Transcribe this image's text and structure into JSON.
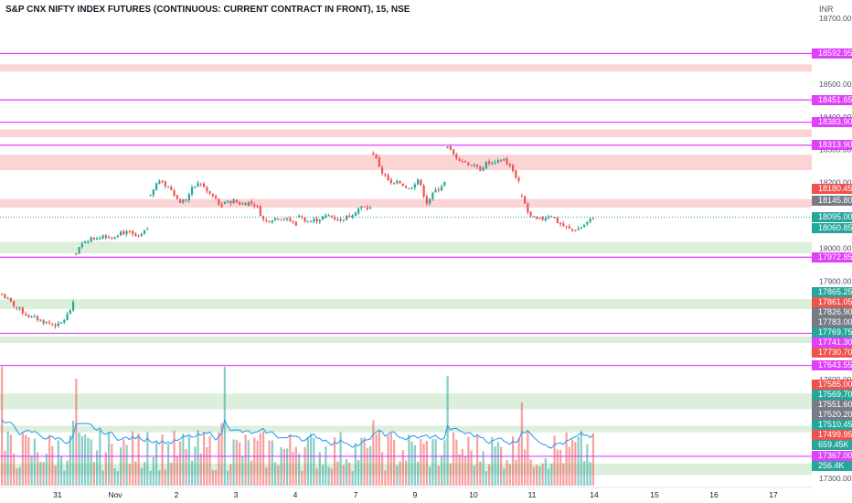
{
  "header": {
    "title": "S&P CNX NIFTY INDEX FUTURES (CONTINUOUS: CURRENT CONTRACT IN FRONT), 15, NSE",
    "currency": "INR"
  },
  "colors": {
    "up": "#26a69a",
    "down": "#ef5350",
    "level_line": "#e040fb",
    "supply_zone": "#fbd5d5",
    "demand_zone": "#dcefdc",
    "last_price_dotted": "#26a69a",
    "volume_ma": "#2196f3",
    "axis_text": "#50535e"
  },
  "chart_data": {
    "type": "candlestick",
    "symbol": "NIFTY1!",
    "interval": "15",
    "exchange": "NSE",
    "y_axis": {
      "ticks": [
        18700,
        18500,
        18400,
        18300,
        18200,
        18000,
        17900,
        17600,
        17300
      ],
      "tick_labels": [
        "18700.00",
        "18500.00",
        "18400.00",
        "18300.00",
        "18200.00",
        "18000.00",
        "17900.00",
        "17600.00",
        "17300.00"
      ],
      "range": [
        17280,
        18730
      ]
    },
    "x_axis": {
      "labels": [
        "31",
        "Nov",
        "2",
        "3",
        "4",
        "7",
        "9",
        "10",
        "11",
        "14",
        "15",
        "16",
        "17"
      ]
    },
    "horizontal_levels": [
      18592.95,
      18451.65,
      18383.9,
      18313.9,
      17972.85,
      17741.3,
      17643.55,
      17367.0
    ],
    "zones": [
      {
        "kind": "supply",
        "from": 18538,
        "to": 18560
      },
      {
        "kind": "supply",
        "from": 18338,
        "to": 18362
      },
      {
        "kind": "supply",
        "from": 18238,
        "to": 18285
      },
      {
        "kind": "supply",
        "from": 18124,
        "to": 18150
      },
      {
        "kind": "demand",
        "from": 17985,
        "to": 18020
      },
      {
        "kind": "demand",
        "from": 17815,
        "to": 17845
      },
      {
        "kind": "demand",
        "from": 17712,
        "to": 17732
      },
      {
        "kind": "demand",
        "from": 17510,
        "to": 17558
      },
      {
        "kind": "demand",
        "from": 17440,
        "to": 17460
      },
      {
        "kind": "demand",
        "from": 17310,
        "to": 17345
      }
    ],
    "price_tags": [
      {
        "label": "18592.95",
        "value": 18592.95,
        "color": "#e040fb"
      },
      {
        "label": "18451.65",
        "value": 18451.65,
        "color": "#e040fb"
      },
      {
        "label": "18383.90",
        "value": 18383.9,
        "color": "#e040fb"
      },
      {
        "label": "18313.90",
        "value": 18313.9,
        "color": "#e040fb"
      },
      {
        "label": "18180.45",
        "value": 18180.45,
        "color": "#ef5350"
      },
      {
        "label": "18145.80",
        "value": 18145.8,
        "color": "#787b86"
      },
      {
        "label": "18095.00",
        "value": 18095.0,
        "color": "#26a69a"
      },
      {
        "label": "18060.85",
        "value": 18060.85,
        "color": "#26a69a"
      },
      {
        "label": "17972.85",
        "value": 17972.85,
        "color": "#e040fb"
      },
      {
        "label": "17865.25",
        "value": 17865.25,
        "color": "#26a69a"
      },
      {
        "label": "17861.05",
        "value": 17861.05,
        "color": "#ef5350"
      },
      {
        "label": "17826.90",
        "value": 17826.9,
        "color": "#787b86"
      },
      {
        "label": "17783.00",
        "value": 17783.0,
        "color": "#787b86"
      },
      {
        "label": "17769.75",
        "value": 17769.75,
        "color": "#26a69a"
      },
      {
        "label": "17741.30",
        "value": 17741.3,
        "color": "#e040fb"
      },
      {
        "label": "17730.70",
        "value": 17730.7,
        "color": "#ef5350"
      },
      {
        "label": "17643.55",
        "value": 17643.55,
        "color": "#e040fb"
      },
      {
        "label": "17585.00",
        "value": 17585.0,
        "color": "#ef5350"
      },
      {
        "label": "17569.70",
        "value": 17569.7,
        "color": "#26a69a"
      },
      {
        "label": "17551.60",
        "value": 17551.6,
        "color": "#787b86"
      },
      {
        "label": "17520.20",
        "value": 17520.2,
        "color": "#787b86"
      },
      {
        "label": "17510.45",
        "value": 17510.45,
        "color": "#26a69a"
      },
      {
        "label": "17499.95",
        "value": 17499.95,
        "color": "#ef5350"
      },
      {
        "label": "659.45K",
        "value": 17470.0,
        "color": "#26a69a"
      },
      {
        "label": "17367.00",
        "value": 17367.0,
        "color": "#e040fb"
      },
      {
        "label": "256.4K",
        "value": 17338.0,
        "color": "#26a69a"
      }
    ],
    "last_price": 18095.0,
    "series": [
      {
        "day": "31",
        "start_idx": 0,
        "count": 25,
        "open": 17860,
        "close": 17830,
        "low": 17760,
        "high": 17880,
        "path": [
          17860,
          17840,
          17820,
          17805,
          17790,
          17785,
          17775,
          17770,
          17765,
          17790,
          17830
        ]
      },
      {
        "day": "Nov",
        "start_idx": 25,
        "count": 25,
        "open": 17985,
        "close": 18060,
        "low": 17945,
        "high": 18075,
        "path": [
          17985,
          18025,
          18030,
          18040,
          18035,
          18050,
          18045,
          18030,
          18060
        ]
      },
      {
        "day": "2",
        "start_idx": 50,
        "count": 25,
        "open": 18160,
        "close": 18120,
        "low": 18100,
        "high": 18220,
        "path": [
          18160,
          18205,
          18195,
          18180,
          18140,
          18150,
          18185,
          18200,
          18170,
          18155,
          18120
        ]
      },
      {
        "day": "3",
        "start_idx": 75,
        "count": 25,
        "open": 18135,
        "close": 18075,
        "low": 18020,
        "high": 18180,
        "path": [
          18135,
          18145,
          18135,
          18140,
          18130,
          18080,
          18090,
          18095,
          18085,
          18075
        ]
      },
      {
        "day": "4",
        "start_idx": 100,
        "count": 25,
        "open": 18095,
        "close": 18120,
        "low": 18050,
        "high": 18160,
        "path": [
          18095,
          18080,
          18090,
          18100,
          18085,
          18100,
          18125,
          18120
        ]
      },
      {
        "day": "7",
        "start_idx": 125,
        "count": 25,
        "open": 18290,
        "close": 18200,
        "low": 18130,
        "high": 18325,
        "path": [
          18290,
          18230,
          18195,
          18200,
          18180,
          18210,
          18140,
          18175,
          18200
        ]
      },
      {
        "day": "9",
        "start_idx": 150,
        "count": 25,
        "open": 18305,
        "close": 18240,
        "low": 18170,
        "high": 18380,
        "path": [
          18305,
          18280,
          18265,
          18255,
          18240,
          18260,
          18255,
          18275,
          18245,
          18205
        ]
      },
      {
        "day": "10",
        "start_idx": 175,
        "count": 25,
        "open": 18160,
        "close": 18095,
        "low": 18045,
        "high": 18170,
        "path": [
          18160,
          18100,
          18085,
          18090,
          18105,
          18080,
          18065,
          18055,
          18060,
          18075,
          18095
        ]
      }
    ],
    "volume": {
      "scale": "relative",
      "spikes": [
        {
          "day": "31",
          "value": 1.0
        },
        {
          "day": "Nov",
          "value": 0.9
        },
        {
          "day": "3",
          "value": 1.0
        },
        {
          "day": "7",
          "value": 0.55
        },
        {
          "day": "9",
          "value": 0.92
        },
        {
          "day": "10",
          "value": 0.7
        }
      ]
    }
  }
}
